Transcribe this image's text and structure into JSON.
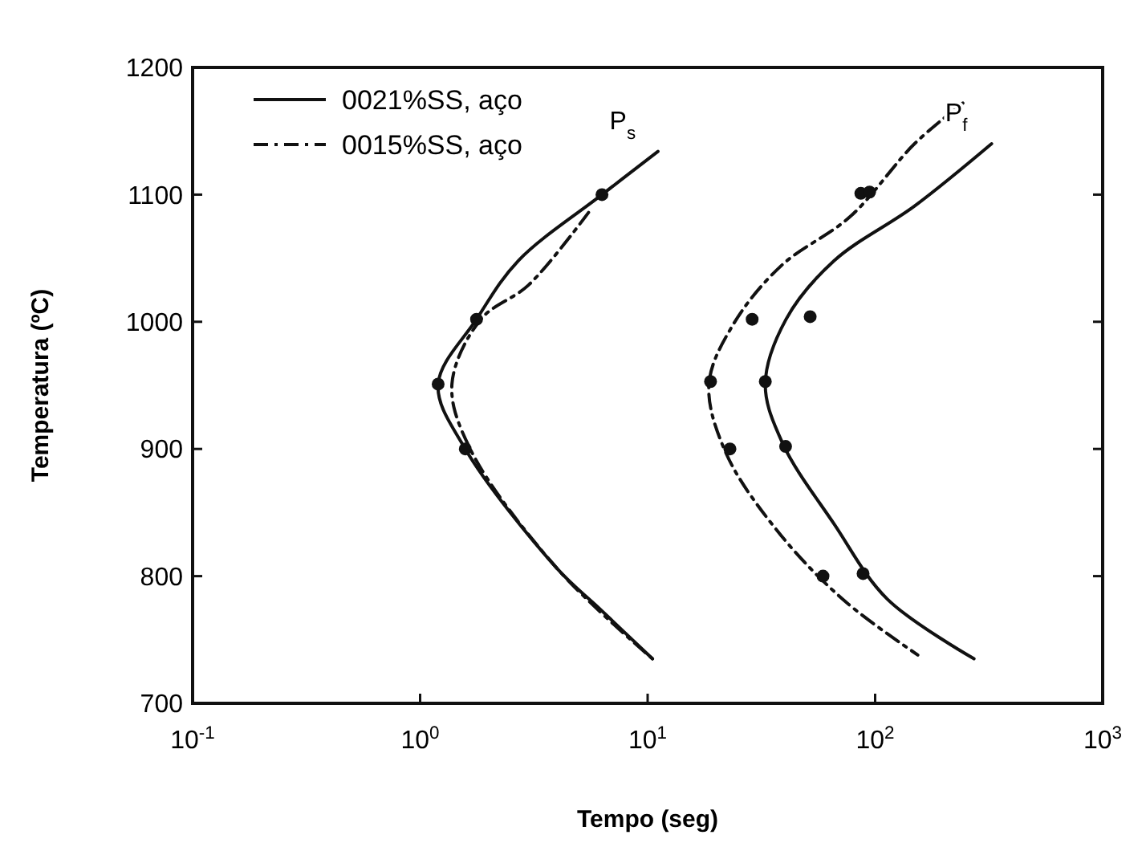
{
  "chart_data": {
    "type": "line",
    "xlabel": "Tempo (seg)",
    "ylabel": "Temperatura (ºC)",
    "log": "x",
    "xlim": [
      0.1,
      1000
    ],
    "xticks": [
      {
        "value": 0.1,
        "label": "10$^{-1}$"
      },
      {
        "value": 1,
        "label": "10$^{0}$"
      },
      {
        "value": 10,
        "label": "10$^{1}$"
      },
      {
        "value": 100,
        "label": "10$^{2}$"
      },
      {
        "value": 1000,
        "label": "10$^{3}$"
      }
    ],
    "ylim": [
      700,
      1200
    ],
    "yticks": [
      700,
      800,
      900,
      1000,
      1100,
      1200
    ],
    "grid": false,
    "legend": "top left",
    "series": [
      {
        "name": "0021%SS, aço",
        "color": "#111111",
        "line_style": "solid",
        "marker": "none",
        "x": [
          11.1,
          6.3,
          2.7,
          1.77,
          1.2,
          1.58,
          4.0,
          6.1,
          10.5
        ],
        "values": [
          1134,
          1100,
          1048,
          1002,
          951,
          900,
          806,
          775,
          735
        ]
      },
      {
        "name": "0015%SS, aço",
        "color": "#111111",
        "line_style": "dashed",
        "marker": "none",
        "x": [
          5.5,
          3.0,
          1.85,
          1.38,
          1.66,
          4.0,
          10.5
        ],
        "values": [
          1086,
          1029,
          1002,
          951,
          900,
          806,
          735
        ]
      },
      {
        "color": "#111111",
        "line_style": "solid",
        "marker": "none",
        "x": [
          325,
          149,
          66,
          40.6,
          32.9,
          39.3,
          66,
          113,
          272
        ],
        "values": [
          1140,
          1091,
          1048,
          1002,
          951,
          904,
          841,
          782,
          735
        ]
      },
      {
        "color": "#111111",
        "line_style": "dashed",
        "marker": "none",
        "x": [
          243,
          149,
          78,
          38.6,
          23.8,
          18.6,
          22.2,
          38.6,
          74,
          154
        ],
        "values": [
          1172,
          1140,
          1083,
          1044,
          998,
          951,
          896,
          832,
          780,
          738
        ]
      },
      {
        "type": "scatter",
        "color": "#111111",
        "marker": "circle",
        "x": [
          6.3,
          1.77,
          1.2,
          1.58,
          86.5,
          51.8,
          32.9,
          40.4,
          88.5
        ],
        "values": [
          1100,
          1002,
          951,
          900,
          1101,
          1004,
          953,
          902,
          802
        ]
      },
      {
        "type": "scatter",
        "color": "#111111",
        "marker": "circle",
        "x": [
          94.5,
          28.8,
          18.9,
          23.0,
          59
        ],
        "values": [
          1102,
          1002,
          953,
          900,
          800
        ]
      }
    ],
    "annotations": [
      "P$_{s}$",
      "P$_{f}$"
    ]
  }
}
